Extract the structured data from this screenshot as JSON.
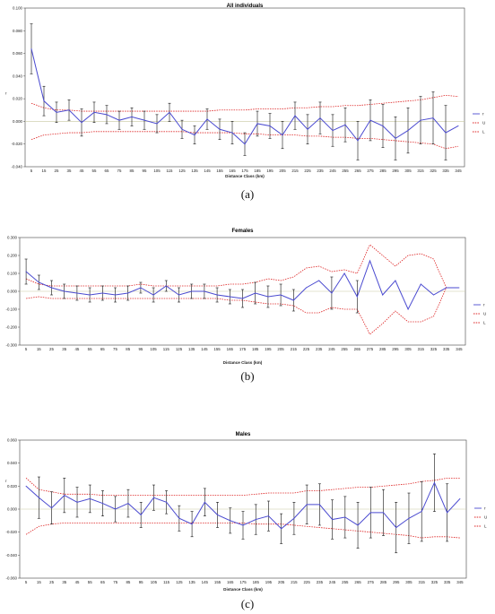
{
  "figure": {
    "captions": [
      "(a)",
      "(b)",
      "(c)"
    ]
  },
  "chart_data": [
    {
      "type": "line",
      "title": "All individuals",
      "xlabel": "Distance Class (km)",
      "ylabel": "r",
      "ylim": [
        -0.04,
        0.1
      ],
      "yticks": [
        "-0.040",
        "-0.020",
        "0.000",
        "0.020",
        "0.040",
        "0.060",
        "0.080",
        "0.100"
      ],
      "ytick_values": [
        -0.04,
        -0.02,
        0,
        0.02,
        0.04,
        0.06,
        0.08,
        0.1
      ],
      "x": [
        5,
        15,
        25,
        35,
        45,
        55,
        65,
        75,
        85,
        95,
        105,
        115,
        125,
        135,
        145,
        155,
        165,
        175,
        185,
        195,
        205,
        215,
        225,
        235,
        245,
        255,
        265,
        275,
        285,
        295,
        305,
        315,
        325,
        335,
        345
      ],
      "legend": [
        "r",
        "U",
        "L"
      ],
      "colors": {
        "r": "#4a4ad0",
        "U": "#dd2222",
        "L": "#dd2222",
        "error": "#111111"
      },
      "series": [
        {
          "name": "r",
          "values": [
            0.064,
            0.018,
            0.008,
            0.01,
            -0.001,
            0.008,
            0.006,
            0.001,
            0.004,
            0.001,
            -0.002,
            0.008,
            -0.007,
            -0.012,
            0.002,
            -0.007,
            -0.01,
            -0.02,
            -0.002,
            -0.004,
            -0.012,
            0.005,
            -0.007,
            0.003,
            -0.008,
            -0.003,
            -0.017,
            0.001,
            -0.004,
            -0.015,
            -0.008,
            0.001,
            0.003,
            -0.01,
            -0.004
          ]
        },
        {
          "name": "U",
          "values": [
            0.016,
            0.012,
            0.01,
            0.01,
            0.009,
            0.009,
            0.009,
            0.009,
            0.009,
            0.009,
            0.009,
            0.009,
            0.009,
            0.009,
            0.009,
            0.01,
            0.01,
            0.01,
            0.011,
            0.011,
            0.011,
            0.012,
            0.012,
            0.013,
            0.013,
            0.014,
            0.014,
            0.015,
            0.016,
            0.017,
            0.018,
            0.019,
            0.021,
            0.023,
            0.022
          ]
        },
        {
          "name": "L",
          "values": [
            -0.016,
            -0.012,
            -0.011,
            -0.01,
            -0.01,
            -0.009,
            -0.009,
            -0.009,
            -0.009,
            -0.009,
            -0.009,
            -0.009,
            -0.009,
            -0.01,
            -0.01,
            -0.01,
            -0.01,
            -0.011,
            -0.011,
            -0.012,
            -0.012,
            -0.012,
            -0.013,
            -0.013,
            -0.014,
            -0.014,
            -0.015,
            -0.015,
            -0.016,
            -0.017,
            -0.018,
            -0.019,
            -0.02,
            -0.024,
            -0.022
          ]
        },
        {
          "name": "error",
          "values": [
            0.022,
            0.013,
            0.009,
            0.009,
            0.012,
            0.009,
            0.008,
            0.008,
            0.008,
            0.008,
            0.008,
            0.008,
            0.008,
            0.008,
            0.009,
            0.009,
            0.01,
            0.01,
            0.011,
            0.011,
            0.012,
            0.012,
            0.013,
            0.014,
            0.014,
            0.015,
            0.017,
            0.018,
            0.019,
            0.019,
            0.02,
            0.021,
            0.023,
            0.024,
            0.0
          ]
        }
      ],
      "grid": false,
      "legend_position": "right"
    },
    {
      "type": "line",
      "title": "Females",
      "xlabel": "Distance Class (km)",
      "ylabel": "",
      "ylim": [
        -0.3,
        0.3
      ],
      "yticks": [
        "-0.300",
        "-0.200",
        "-0.100",
        "0.000",
        "0.100",
        "0.200",
        "0.300"
      ],
      "ytick_values": [
        -0.3,
        -0.2,
        -0.1,
        0,
        0.1,
        0.2,
        0.3
      ],
      "x": [
        5,
        15,
        25,
        35,
        45,
        55,
        65,
        75,
        85,
        95,
        105,
        115,
        125,
        135,
        145,
        155,
        165,
        175,
        185,
        195,
        205,
        215,
        225,
        235,
        245,
        255,
        265,
        275,
        285,
        295,
        305,
        315,
        325,
        335,
        345
      ],
      "legend": [
        "r",
        "U",
        "L"
      ],
      "colors": {
        "r": "#4a4ad0",
        "U": "#dd2222",
        "L": "#dd2222",
        "error": "#111111"
      },
      "series": [
        {
          "name": "r",
          "values": [
            0.11,
            0.05,
            0.02,
            0.0,
            -0.01,
            -0.02,
            -0.01,
            -0.02,
            -0.01,
            0.02,
            -0.02,
            0.03,
            -0.02,
            0.0,
            0.0,
            -0.02,
            -0.03,
            -0.04,
            -0.01,
            -0.03,
            -0.02,
            -0.05,
            0.02,
            0.06,
            -0.01,
            0.1,
            -0.03,
            0.17,
            -0.02,
            0.06,
            -0.1,
            0.04,
            -0.02,
            0.02,
            0.02
          ]
        },
        {
          "name": "U",
          "values": [
            0.07,
            0.04,
            0.03,
            0.03,
            0.03,
            0.03,
            0.03,
            0.03,
            0.03,
            0.04,
            0.03,
            0.03,
            0.03,
            0.03,
            0.03,
            0.03,
            0.04,
            0.04,
            0.05,
            0.07,
            0.06,
            0.08,
            0.13,
            0.14,
            0.11,
            0.12,
            0.1,
            0.26,
            0.2,
            0.14,
            0.2,
            0.21,
            0.18,
            0.02,
            0.02
          ]
        },
        {
          "name": "L",
          "values": [
            -0.04,
            -0.03,
            -0.04,
            -0.04,
            -0.04,
            -0.04,
            -0.04,
            -0.04,
            -0.04,
            -0.04,
            -0.04,
            -0.04,
            -0.04,
            -0.04,
            -0.04,
            -0.04,
            -0.05,
            -0.05,
            -0.06,
            -0.07,
            -0.07,
            -0.08,
            -0.12,
            -0.12,
            -0.09,
            -0.1,
            -0.1,
            -0.24,
            -0.18,
            -0.11,
            -0.17,
            -0.17,
            -0.14,
            0.02,
            0.02
          ]
        },
        {
          "name": "error",
          "values": [
            0.07,
            0.04,
            0.04,
            0.04,
            0.04,
            0.04,
            0.04,
            0.04,
            0.04,
            0.03,
            0.04,
            0.03,
            0.04,
            0.04,
            0.04,
            0.04,
            0.04,
            0.05,
            0.06,
            0.06,
            0.06,
            0.06,
            0.0,
            0.0,
            0.09,
            0.0,
            0.09,
            0.0,
            0.0,
            0.0,
            0.0,
            0.0,
            0.0,
            0.0,
            0.0
          ]
        }
      ],
      "grid": false,
      "legend_position": "right"
    },
    {
      "type": "line",
      "title": "Males",
      "xlabel": "Distance Class (km)",
      "ylabel": "r",
      "ylim": [
        -0.06,
        0.06
      ],
      "yticks": [
        "-0.060",
        "-0.040",
        "-0.020",
        "0.000",
        "0.020",
        "0.040",
        "0.060"
      ],
      "ytick_values": [
        -0.06,
        -0.04,
        -0.02,
        0,
        0.02,
        0.04,
        0.06
      ],
      "x": [
        5,
        15,
        25,
        35,
        45,
        55,
        65,
        75,
        85,
        95,
        105,
        115,
        125,
        135,
        145,
        155,
        165,
        175,
        185,
        195,
        205,
        215,
        225,
        235,
        245,
        255,
        265,
        275,
        285,
        295,
        305,
        315,
        325,
        335,
        345
      ],
      "legend": [
        "r",
        "U",
        "L"
      ],
      "colors": {
        "r": "#4a4ad0",
        "U": "#dd2222",
        "L": "#dd2222",
        "error": "#111111"
      },
      "series": [
        {
          "name": "r",
          "values": [
            0.02,
            0.01,
            0.001,
            0.012,
            0.006,
            0.009,
            0.005,
            0.0,
            0.005,
            -0.005,
            0.01,
            0.006,
            -0.008,
            -0.013,
            0.006,
            -0.005,
            -0.01,
            -0.014,
            -0.009,
            -0.006,
            -0.017,
            -0.008,
            0.004,
            0.004,
            -0.009,
            -0.007,
            -0.014,
            -0.003,
            -0.003,
            -0.016,
            -0.008,
            -0.002,
            0.023,
            -0.003,
            0.009
          ]
        },
        {
          "name": "U",
          "values": [
            0.027,
            0.017,
            0.015,
            0.013,
            0.013,
            0.013,
            0.012,
            0.012,
            0.012,
            0.012,
            0.012,
            0.012,
            0.012,
            0.012,
            0.012,
            0.012,
            0.012,
            0.012,
            0.013,
            0.014,
            0.014,
            0.014,
            0.016,
            0.016,
            0.017,
            0.018,
            0.019,
            0.019,
            0.02,
            0.021,
            0.022,
            0.024,
            0.025,
            0.027,
            0.027
          ]
        },
        {
          "name": "L",
          "values": [
            -0.022,
            -0.015,
            -0.013,
            -0.012,
            -0.012,
            -0.012,
            -0.012,
            -0.012,
            -0.012,
            -0.012,
            -0.012,
            -0.012,
            -0.012,
            -0.012,
            -0.012,
            -0.012,
            -0.012,
            -0.012,
            -0.013,
            -0.013,
            -0.013,
            -0.014,
            -0.015,
            -0.016,
            -0.017,
            -0.018,
            -0.019,
            -0.02,
            -0.021,
            -0.022,
            -0.023,
            -0.025,
            -0.024,
            -0.024,
            -0.025
          ]
        },
        {
          "name": "error",
          "values": [
            0.0,
            0.018,
            0.014,
            0.015,
            0.013,
            0.012,
            0.011,
            0.011,
            0.012,
            0.011,
            0.011,
            0.01,
            0.011,
            0.011,
            0.012,
            0.011,
            0.011,
            0.012,
            0.013,
            0.013,
            0.013,
            0.014,
            0.017,
            0.018,
            0.017,
            0.018,
            0.02,
            0.022,
            0.02,
            0.022,
            0.022,
            0.026,
            0.025,
            0.025,
            0.0
          ]
        }
      ],
      "grid": false,
      "legend_position": "right"
    }
  ]
}
